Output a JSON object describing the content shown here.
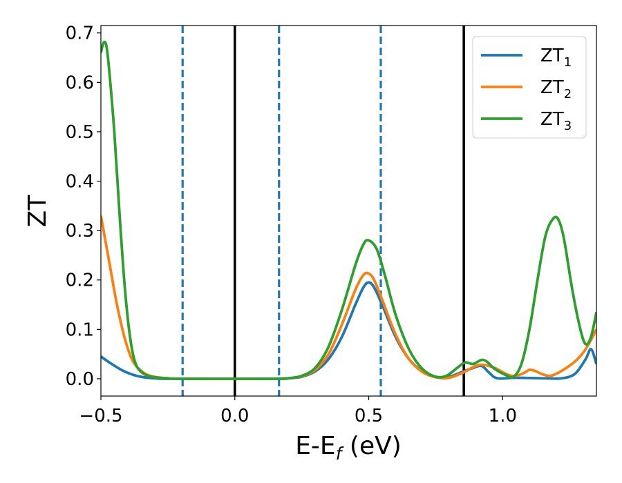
{
  "chart_data": {
    "type": "line",
    "xlabel": "E-E",
    "xlabel_sub": "f",
    "xlabel_unit": " (eV)",
    "ylabel": "ZT",
    "xlim": [
      -0.5,
      1.35
    ],
    "ylim": [
      -0.035,
      0.715
    ],
    "xticks": [
      -0.5,
      0.0,
      0.5,
      1.0
    ],
    "xtick_labels": [
      "−0.5",
      "0.0",
      "0.5",
      "1.0"
    ],
    "yticks": [
      0.0,
      0.1,
      0.2,
      0.3,
      0.4,
      0.5,
      0.6,
      0.7
    ],
    "ytick_labels": [
      "0.0",
      "0.1",
      "0.2",
      "0.3",
      "0.4",
      "0.5",
      "0.6",
      "0.7"
    ],
    "grid": false,
    "legend_position": "top-right",
    "vlines": [
      {
        "x": -0.195,
        "style": "dashed",
        "color": "#1f77b4"
      },
      {
        "x": 0.0,
        "style": "solid",
        "color": "#000000"
      },
      {
        "x": 0.165,
        "style": "dashed",
        "color": "#1f77b4"
      },
      {
        "x": 0.545,
        "style": "dashed",
        "color": "#1f77b4"
      },
      {
        "x": 0.855,
        "style": "solid",
        "color": "#000000"
      }
    ],
    "series": [
      {
        "name": "ZT",
        "sub": "1",
        "color": "#1f77b4",
        "points": [
          [
            -0.5,
            0.045
          ],
          [
            -0.46,
            0.03
          ],
          [
            -0.42,
            0.017
          ],
          [
            -0.38,
            0.008
          ],
          [
            -0.34,
            0.003
          ],
          [
            -0.3,
            0.001
          ],
          [
            -0.25,
            0.0
          ],
          [
            -0.1,
            0.0
          ],
          [
            0.1,
            0.0
          ],
          [
            0.2,
            0.001
          ],
          [
            0.25,
            0.004
          ],
          [
            0.3,
            0.015
          ],
          [
            0.35,
            0.04
          ],
          [
            0.4,
            0.085
          ],
          [
            0.45,
            0.15
          ],
          [
            0.48,
            0.185
          ],
          [
            0.5,
            0.195
          ],
          [
            0.52,
            0.185
          ],
          [
            0.55,
            0.15
          ],
          [
            0.6,
            0.085
          ],
          [
            0.65,
            0.04
          ],
          [
            0.7,
            0.015
          ],
          [
            0.75,
            0.004
          ],
          [
            0.8,
            0.004
          ],
          [
            0.85,
            0.014
          ],
          [
            0.88,
            0.02
          ],
          [
            0.92,
            0.026
          ],
          [
            0.95,
            0.012
          ],
          [
            0.98,
            0.001
          ],
          [
            1.05,
            0.002
          ],
          [
            1.15,
            0.001
          ],
          [
            1.22,
            0.001
          ],
          [
            1.27,
            0.01
          ],
          [
            1.31,
            0.04
          ],
          [
            1.33,
            0.06
          ],
          [
            1.35,
            0.03
          ]
        ]
      },
      {
        "name": "ZT",
        "sub": "2",
        "color": "#ff7f0e",
        "points": [
          [
            -0.5,
            0.33
          ],
          [
            -0.47,
            0.24
          ],
          [
            -0.44,
            0.15
          ],
          [
            -0.41,
            0.08
          ],
          [
            -0.38,
            0.035
          ],
          [
            -0.34,
            0.012
          ],
          [
            -0.3,
            0.004
          ],
          [
            -0.25,
            0.001
          ],
          [
            -0.2,
            0.0
          ],
          [
            0.15,
            0.0
          ],
          [
            0.2,
            0.001
          ],
          [
            0.25,
            0.005
          ],
          [
            0.3,
            0.018
          ],
          [
            0.35,
            0.05
          ],
          [
            0.4,
            0.11
          ],
          [
            0.45,
            0.18
          ],
          [
            0.48,
            0.21
          ],
          [
            0.5,
            0.213
          ],
          [
            0.52,
            0.2
          ],
          [
            0.55,
            0.16
          ],
          [
            0.6,
            0.09
          ],
          [
            0.65,
            0.04
          ],
          [
            0.7,
            0.014
          ],
          [
            0.75,
            0.003
          ],
          [
            0.8,
            0.002
          ],
          [
            0.85,
            0.012
          ],
          [
            0.9,
            0.026
          ],
          [
            0.93,
            0.028
          ],
          [
            0.97,
            0.022
          ],
          [
            1.02,
            0.008
          ],
          [
            1.05,
            0.006
          ],
          [
            1.08,
            0.012
          ],
          [
            1.1,
            0.018
          ],
          [
            1.12,
            0.016
          ],
          [
            1.15,
            0.009
          ],
          [
            1.18,
            0.006
          ],
          [
            1.22,
            0.016
          ],
          [
            1.27,
            0.035
          ],
          [
            1.31,
            0.06
          ],
          [
            1.35,
            0.1
          ]
        ]
      },
      {
        "name": "ZT",
        "sub": "3",
        "color": "#2ca02c",
        "points": [
          [
            -0.5,
            0.66
          ],
          [
            -0.49,
            0.68
          ],
          [
            -0.48,
            0.675
          ],
          [
            -0.47,
            0.63
          ],
          [
            -0.45,
            0.5
          ],
          [
            -0.43,
            0.33
          ],
          [
            -0.41,
            0.18
          ],
          [
            -0.39,
            0.08
          ],
          [
            -0.37,
            0.03
          ],
          [
            -0.34,
            0.01
          ],
          [
            -0.3,
            0.003
          ],
          [
            -0.25,
            0.001
          ],
          [
            -0.2,
            0.0
          ],
          [
            0.15,
            0.0
          ],
          [
            0.2,
            0.001
          ],
          [
            0.25,
            0.006
          ],
          [
            0.3,
            0.022
          ],
          [
            0.35,
            0.065
          ],
          [
            0.4,
            0.14
          ],
          [
            0.45,
            0.23
          ],
          [
            0.48,
            0.272
          ],
          [
            0.5,
            0.28
          ],
          [
            0.53,
            0.262
          ],
          [
            0.56,
            0.21
          ],
          [
            0.6,
            0.13
          ],
          [
            0.65,
            0.06
          ],
          [
            0.7,
            0.02
          ],
          [
            0.75,
            0.004
          ],
          [
            0.79,
            0.006
          ],
          [
            0.83,
            0.022
          ],
          [
            0.86,
            0.033
          ],
          [
            0.89,
            0.03
          ],
          [
            0.92,
            0.038
          ],
          [
            0.94,
            0.035
          ],
          [
            0.97,
            0.02
          ],
          [
            1.01,
            0.008
          ],
          [
            1.04,
            0.004
          ],
          [
            1.07,
            0.03
          ],
          [
            1.1,
            0.1
          ],
          [
            1.13,
            0.2
          ],
          [
            1.16,
            0.29
          ],
          [
            1.19,
            0.325
          ],
          [
            1.21,
            0.32
          ],
          [
            1.23,
            0.28
          ],
          [
            1.26,
            0.18
          ],
          [
            1.29,
            0.1
          ],
          [
            1.31,
            0.07
          ],
          [
            1.33,
            0.085
          ],
          [
            1.35,
            0.135
          ]
        ]
      }
    ]
  }
}
